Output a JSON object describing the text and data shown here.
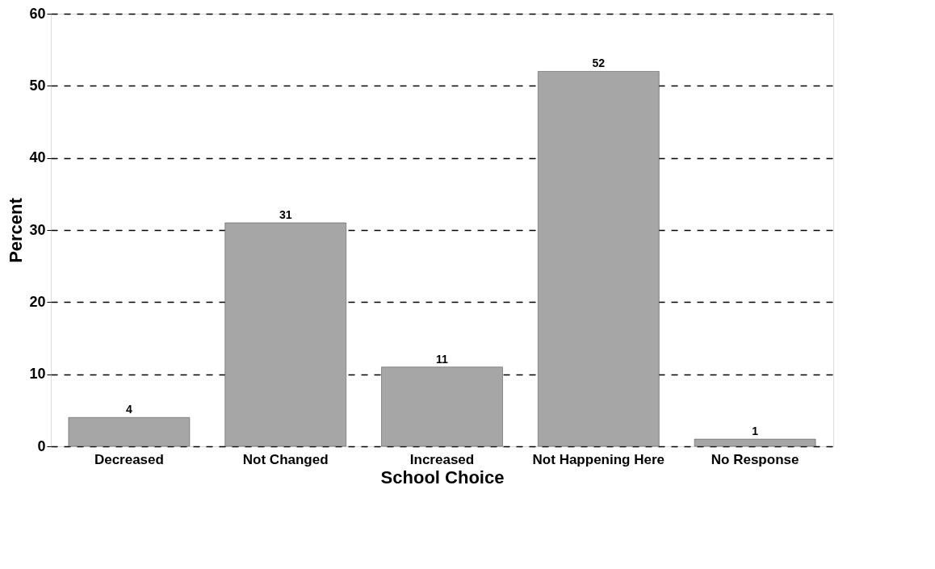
{
  "chart_data": {
    "type": "bar",
    "xlabel": "School Choice",
    "ylabel": "Percent",
    "categories": [
      "Decreased",
      "Not Changed",
      "Increased",
      "Not Happening Here",
      "No Response"
    ],
    "values": [
      4,
      31,
      11,
      52,
      1
    ],
    "color": "#a6a6a6",
    "ylim": [
      0,
      60
    ],
    "yticks": [
      0,
      10,
      20,
      30,
      40,
      50,
      60
    ],
    "grid": "y",
    "data_labels": true
  }
}
